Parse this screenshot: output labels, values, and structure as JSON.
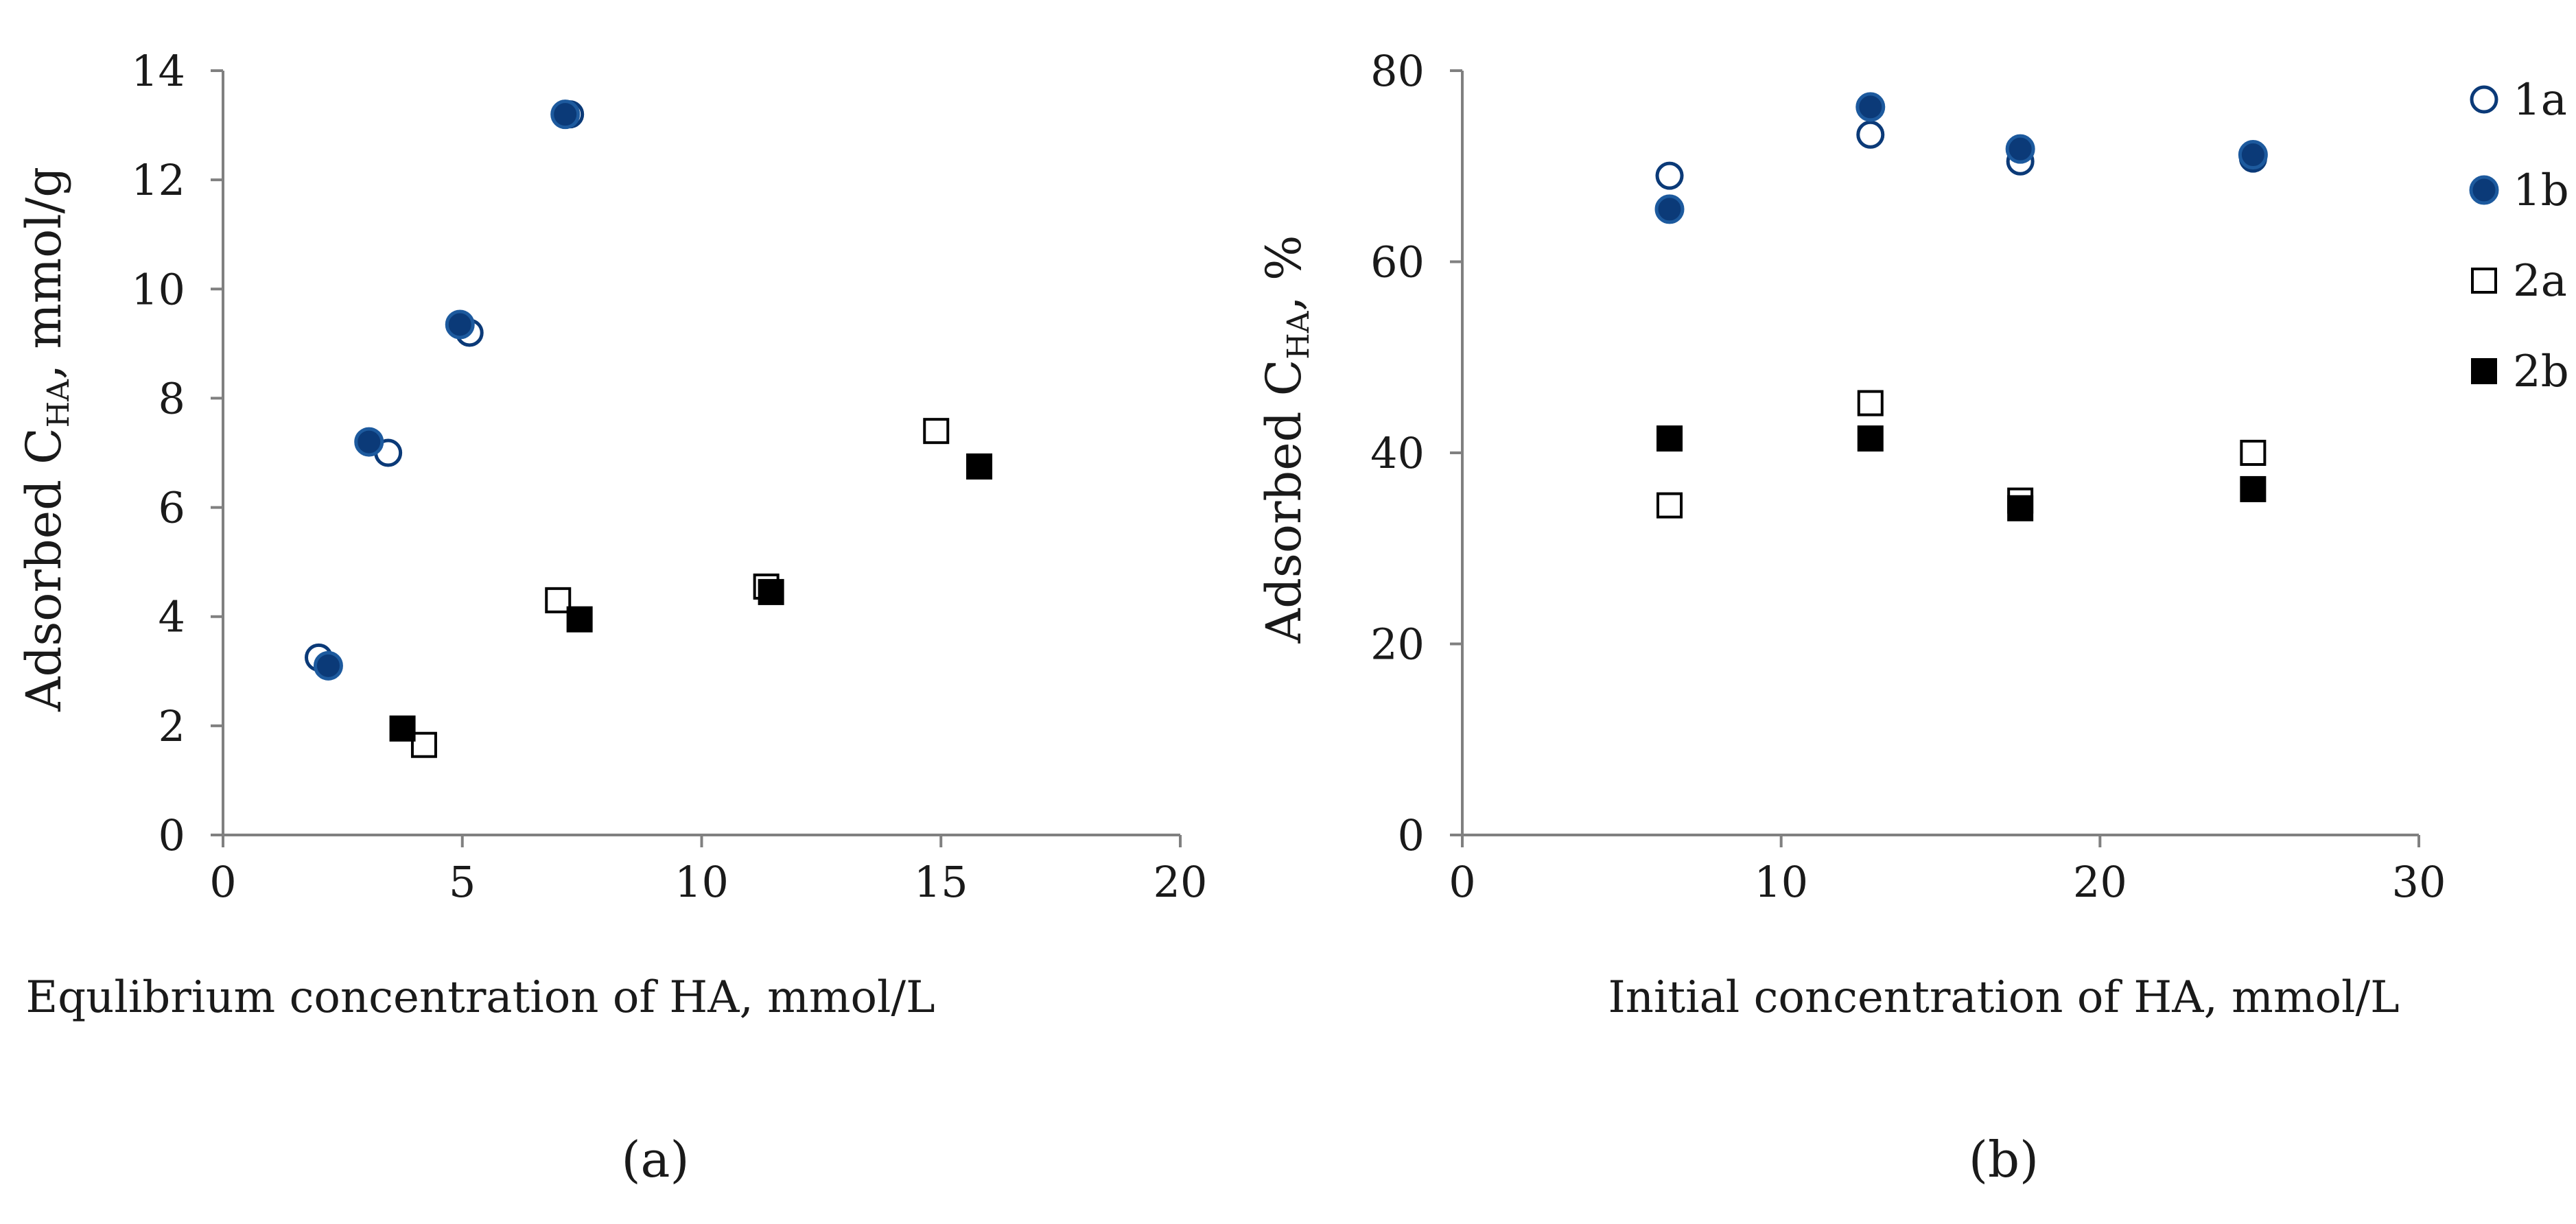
{
  "colors": {
    "blue": "#0b3a78",
    "black": "#000000",
    "axis": "#808080"
  },
  "panels": [
    {
      "label": "(a)",
      "xlabel": "Equlibrium concentration of HA, mmol/L",
      "ylabel_prefix": "Adsorbed C",
      "ylabel_sub": "HA",
      "ylabel_suffix": ", mmol/g"
    },
    {
      "label": "(b)",
      "xlabel": "Initial concentration of HA, mmol/L",
      "ylabel_prefix": "Adsorbed C",
      "ylabel_sub": "HA",
      "ylabel_suffix": ", %"
    }
  ],
  "legend": [
    {
      "name": "1a",
      "marker": "circle-open"
    },
    {
      "name": "1b",
      "marker": "circle-filled"
    },
    {
      "name": "2a",
      "marker": "square-open"
    },
    {
      "name": "2b",
      "marker": "square-filled"
    }
  ],
  "chart_data": [
    {
      "type": "scatter",
      "title": "",
      "xlabel": "Equlibrium concentration of HA, mmol/L",
      "ylabel": "Adsorbed CHA, mmol/g",
      "xlim": [
        0,
        20
      ],
      "ylim": [
        0,
        14
      ],
      "xticks": [
        0,
        5,
        10,
        15,
        20
      ],
      "yticks": [
        0,
        2,
        4,
        6,
        8,
        10,
        12,
        14
      ],
      "series": [
        {
          "name": "1a",
          "marker": "circle-open",
          "points": [
            [
              2.0,
              3.25
            ],
            [
              3.45,
              7.0
            ],
            [
              5.15,
              9.2
            ],
            [
              7.25,
              13.2
            ]
          ]
        },
        {
          "name": "1b",
          "marker": "circle-filled",
          "points": [
            [
              2.2,
              3.1
            ],
            [
              3.05,
              7.2
            ],
            [
              4.95,
              9.35
            ],
            [
              7.15,
              13.2
            ]
          ]
        },
        {
          "name": "2a",
          "marker": "square-open",
          "points": [
            [
              4.2,
              1.65
            ],
            [
              7.0,
              4.3
            ],
            [
              11.35,
              4.55
            ],
            [
              14.9,
              7.4
            ]
          ]
        },
        {
          "name": "2b",
          "marker": "square-filled",
          "points": [
            [
              3.75,
              1.95
            ],
            [
              7.45,
              3.95
            ],
            [
              11.45,
              4.45
            ],
            [
              15.8,
              6.75
            ]
          ]
        }
      ]
    },
    {
      "type": "scatter",
      "title": "",
      "xlabel": "Initial concentration of HA, mmol/L",
      "ylabel": "Adsorbed CHA, %",
      "xlim": [
        0,
        30
      ],
      "ylim": [
        0,
        80
      ],
      "xticks": [
        0,
        10,
        20,
        30
      ],
      "yticks": [
        0,
        20,
        40,
        60,
        80
      ],
      "series": [
        {
          "name": "1a",
          "marker": "circle-open",
          "points": [
            [
              6.5,
              69.0
            ],
            [
              12.8,
              73.3
            ],
            [
              17.5,
              70.5
            ],
            [
              24.8,
              70.8
            ]
          ]
        },
        {
          "name": "1b",
          "marker": "circle-filled",
          "points": [
            [
              6.5,
              65.5
            ],
            [
              12.8,
              76.2
            ],
            [
              17.5,
              71.8
            ],
            [
              24.8,
              71.2
            ]
          ]
        },
        {
          "name": "2a",
          "marker": "square-open",
          "points": [
            [
              6.5,
              34.5
            ],
            [
              12.8,
              45.2
            ],
            [
              17.5,
              35.0
            ],
            [
              24.8,
              40.0
            ]
          ]
        },
        {
          "name": "2b",
          "marker": "square-filled",
          "points": [
            [
              6.5,
              41.5
            ],
            [
              12.8,
              41.5
            ],
            [
              17.5,
              34.2
            ],
            [
              24.8,
              36.2
            ]
          ]
        }
      ]
    }
  ]
}
